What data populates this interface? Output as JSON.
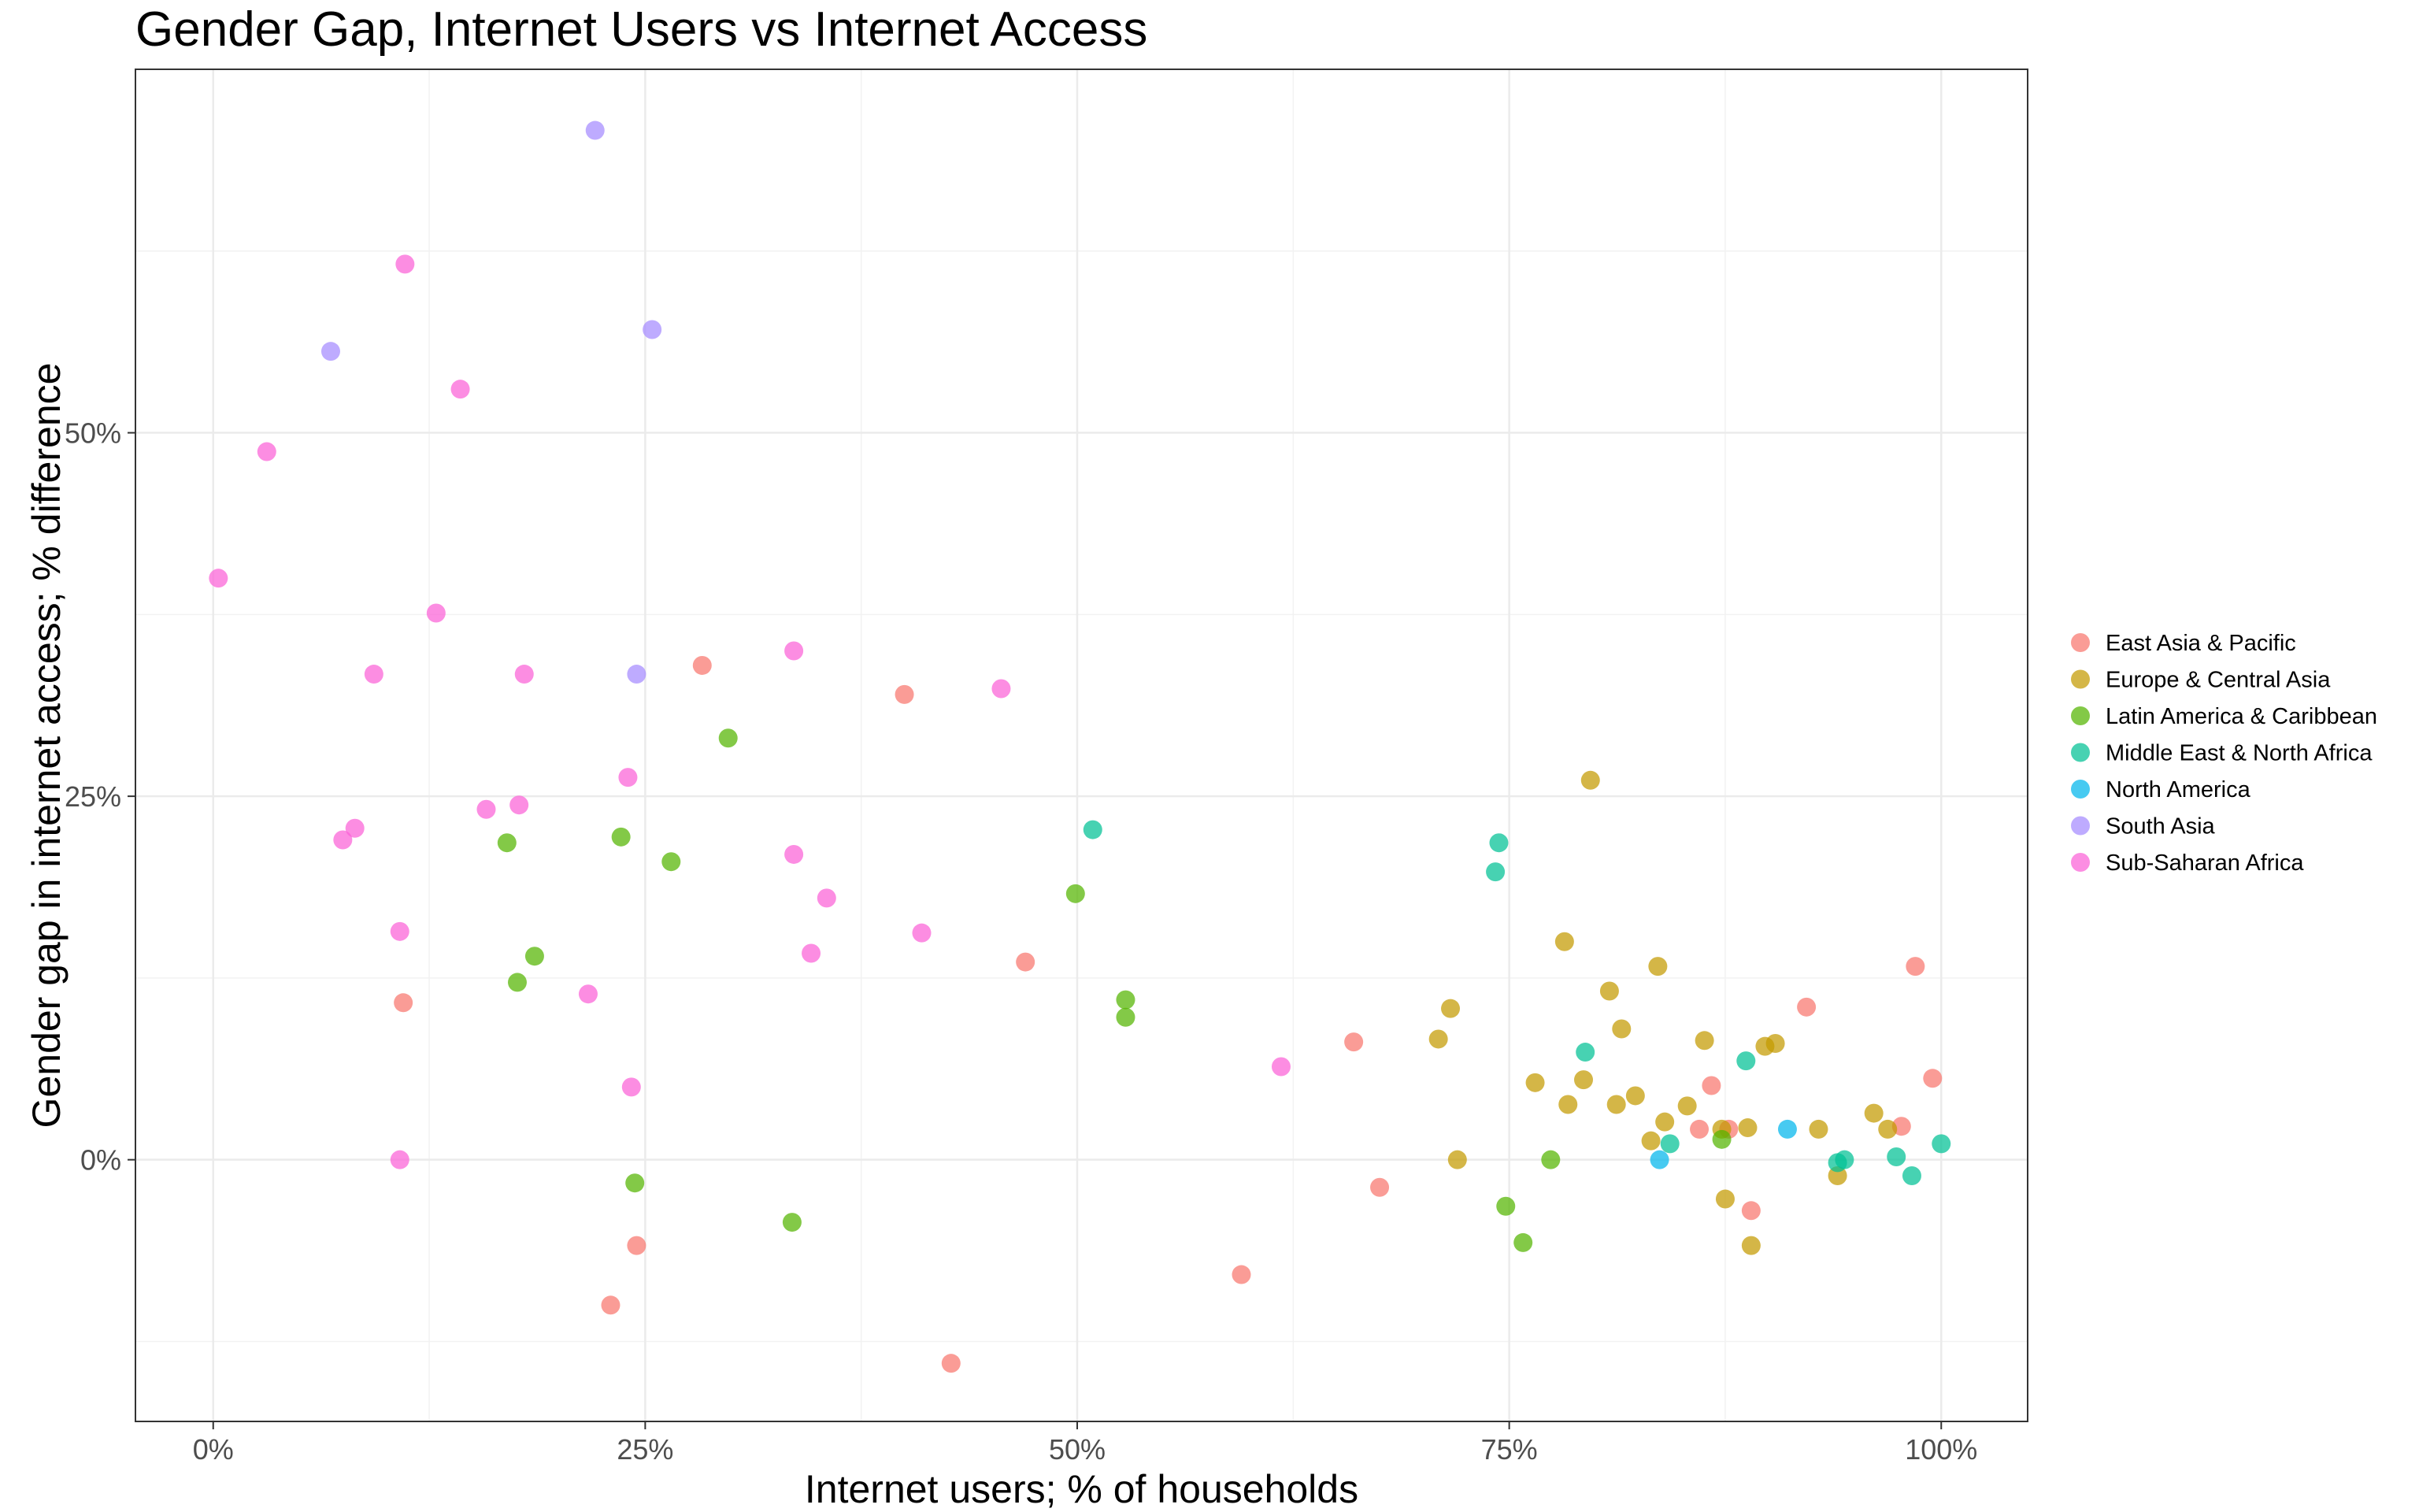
{
  "chart_data": {
    "type": "scatter",
    "title": "Gender Gap, Internet Users vs Internet Access",
    "xlabel": "Internet users; % of households",
    "ylabel": "Gender gap in internet access; % difference",
    "xlim": [
      -0.045,
      1.05
    ],
    "ylim": [
      -0.18,
      0.75
    ],
    "x_ticks": [
      0,
      0.25,
      0.5,
      0.75,
      1.0
    ],
    "x_tick_labels": [
      "0%",
      "25%",
      "50%",
      "75%",
      "100%"
    ],
    "y_ticks": [
      0,
      0.25,
      0.5
    ],
    "y_tick_labels": [
      "0%",
      "25%",
      "50%"
    ],
    "grid": true,
    "legend_position": "right",
    "series": [
      {
        "name": "East Asia & Pacific",
        "color": "#F8766D",
        "points": [
          [
            0.11,
            0.108
          ],
          [
            0.23,
            -0.1
          ],
          [
            0.245,
            -0.059
          ],
          [
            0.283,
            0.34
          ],
          [
            0.4,
            0.32
          ],
          [
            0.427,
            -0.14
          ],
          [
            0.47,
            0.136
          ],
          [
            0.595,
            -0.079
          ],
          [
            0.66,
            0.081
          ],
          [
            0.675,
            -0.019
          ],
          [
            0.86,
            0.021
          ],
          [
            0.867,
            0.051
          ],
          [
            0.877,
            0.021
          ],
          [
            0.89,
            -0.035
          ],
          [
            0.922,
            0.105
          ],
          [
            0.977,
            0.023
          ],
          [
            0.985,
            0.133
          ],
          [
            0.995,
            0.056
          ]
        ]
      },
      {
        "name": "Europe & Central Asia",
        "color": "#C49A00",
        "points": [
          [
            0.709,
            0.083
          ],
          [
            0.716,
            0.104
          ],
          [
            0.72,
            0.0
          ],
          [
            0.765,
            0.053
          ],
          [
            0.782,
            0.15
          ],
          [
            0.784,
            0.038
          ],
          [
            0.793,
            0.055
          ],
          [
            0.797,
            0.261
          ],
          [
            0.808,
            0.116
          ],
          [
            0.812,
            0.038
          ],
          [
            0.815,
            0.09
          ],
          [
            0.823,
            0.044
          ],
          [
            0.832,
            0.013
          ],
          [
            0.836,
            0.133
          ],
          [
            0.84,
            0.026
          ],
          [
            0.853,
            0.037
          ],
          [
            0.863,
            0.082
          ],
          [
            0.873,
            0.021
          ],
          [
            0.875,
            -0.027
          ],
          [
            0.888,
            0.022
          ],
          [
            0.89,
            -0.059
          ],
          [
            0.898,
            0.078
          ],
          [
            0.904,
            0.08
          ],
          [
            0.929,
            0.021
          ],
          [
            0.94,
            -0.011
          ],
          [
            0.961,
            0.032
          ],
          [
            0.969,
            0.021
          ]
        ]
      },
      {
        "name": "Latin America & Caribbean",
        "color": "#53B400",
        "points": [
          [
            0.17,
            0.218
          ],
          [
            0.176,
            0.122
          ],
          [
            0.186,
            0.14
          ],
          [
            0.236,
            0.222
          ],
          [
            0.244,
            -0.016
          ],
          [
            0.265,
            0.205
          ],
          [
            0.298,
            0.29
          ],
          [
            0.335,
            -0.043
          ],
          [
            0.499,
            0.183
          ],
          [
            0.528,
            0.11
          ],
          [
            0.528,
            0.098
          ],
          [
            0.748,
            -0.032
          ],
          [
            0.758,
            -0.057
          ],
          [
            0.774,
            0.0
          ],
          [
            0.873,
            0.014
          ]
        ]
      },
      {
        "name": "Middle East & North Africa",
        "color": "#00C094",
        "points": [
          [
            0.509,
            0.227
          ],
          [
            0.742,
            0.198
          ],
          [
            0.744,
            0.218
          ],
          [
            0.794,
            0.074
          ],
          [
            0.843,
            0.011
          ],
          [
            0.887,
            0.068
          ],
          [
            0.94,
            -0.002
          ],
          [
            0.944,
            0.0
          ],
          [
            0.974,
            0.002
          ],
          [
            0.983,
            -0.011
          ],
          [
            1.0,
            0.011
          ]
        ]
      },
      {
        "name": "North America",
        "color": "#00B6EB",
        "points": [
          [
            0.837,
            0.0
          ],
          [
            0.911,
            0.021
          ]
        ]
      },
      {
        "name": "South Asia",
        "color": "#A58AFF",
        "points": [
          [
            0.068,
            0.556
          ],
          [
            0.221,
            0.708
          ],
          [
            0.245,
            0.334
          ],
          [
            0.254,
            0.571
          ]
        ]
      },
      {
        "name": "Sub-Saharan Africa",
        "color": "#FB61D7",
        "points": [
          [
            0.003,
            0.4
          ],
          [
            0.031,
            0.487
          ],
          [
            0.075,
            0.22
          ],
          [
            0.082,
            0.228
          ],
          [
            0.093,
            0.334
          ],
          [
            0.108,
            0.157
          ],
          [
            0.108,
            0.0
          ],
          [
            0.111,
            0.616
          ],
          [
            0.129,
            0.376
          ],
          [
            0.143,
            0.53
          ],
          [
            0.158,
            0.241
          ],
          [
            0.177,
            0.244
          ],
          [
            0.18,
            0.334
          ],
          [
            0.217,
            0.114
          ],
          [
            0.24,
            0.263
          ],
          [
            0.242,
            0.05
          ],
          [
            0.336,
            0.21
          ],
          [
            0.336,
            0.35
          ],
          [
            0.346,
            0.142
          ],
          [
            0.355,
            0.18
          ],
          [
            0.41,
            0.156
          ],
          [
            0.456,
            0.324
          ],
          [
            0.618,
            0.064
          ]
        ]
      }
    ]
  }
}
